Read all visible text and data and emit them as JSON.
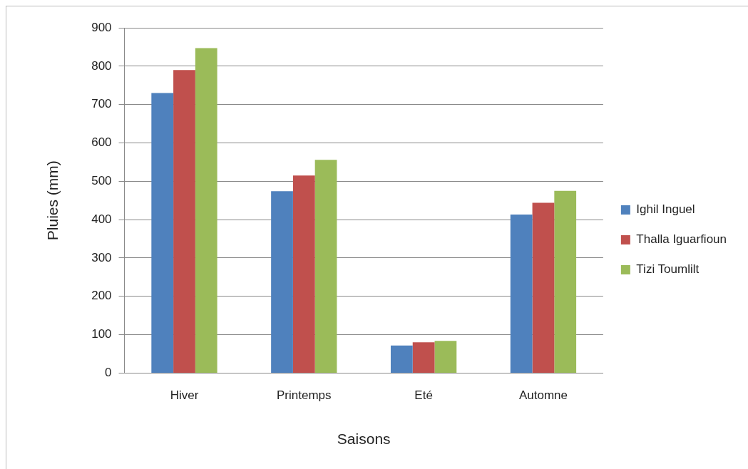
{
  "chart_data": {
    "type": "bar",
    "xlabel": "Saisons",
    "ylabel": "Pluies (mm)",
    "categories": [
      "Hiver",
      "Printemps",
      "Eté",
      "Automne"
    ],
    "series": [
      {
        "name": "Ighil Inguel",
        "color": "#4f81bd",
        "values": [
          730,
          474,
          72,
          413
        ]
      },
      {
        "name": "Thalla Iguarfioun",
        "color": "#c0504d",
        "values": [
          790,
          515,
          80,
          444
        ]
      },
      {
        "name": "Tizi Toumlilt",
        "color": "#9bbb59",
        "values": [
          847,
          556,
          84,
          475
        ]
      }
    ],
    "ylim": [
      0,
      900
    ],
    "yticks": [
      0,
      100,
      200,
      300,
      400,
      500,
      600,
      700,
      800,
      900
    ],
    "grid": "y",
    "legend": "right"
  }
}
